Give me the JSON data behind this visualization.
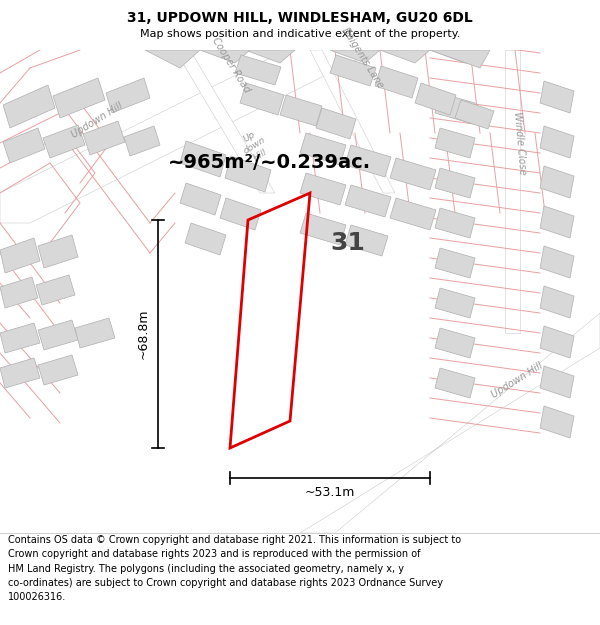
{
  "title": "31, UPDOWN HILL, WINDLESHAM, GU20 6DL",
  "subtitle": "Map shows position and indicative extent of the property.",
  "footer_text": "Contains OS data © Crown copyright and database right 2021. This information is subject to\nCrown copyright and database rights 2023 and is reproduced with the permission of\nHM Land Registry. The polygons (including the associated geometry, namely x, y\nco-ordinates) are subject to Crown copyright and database rights 2023 Ordnance Survey\n100026316.",
  "map_bg": "#f5f5f5",
  "plot_line_color": "#e8a0a0",
  "building_fill": "#d8d8d8",
  "building_edge": "#b0b0b0",
  "road_fill": "#ffffff",
  "property_edge": "#dd0000",
  "area_text": "~965m²/~0.239ac.",
  "label_31": "31",
  "dim_width": "~53.1m",
  "dim_height": "~68.8m",
  "title_fontsize": 10,
  "subtitle_fontsize": 8,
  "footer_fontsize": 7,
  "area_fontsize": 14,
  "label_fontsize": 18,
  "dim_fontsize": 9,
  "road_label_fontsize": 7
}
